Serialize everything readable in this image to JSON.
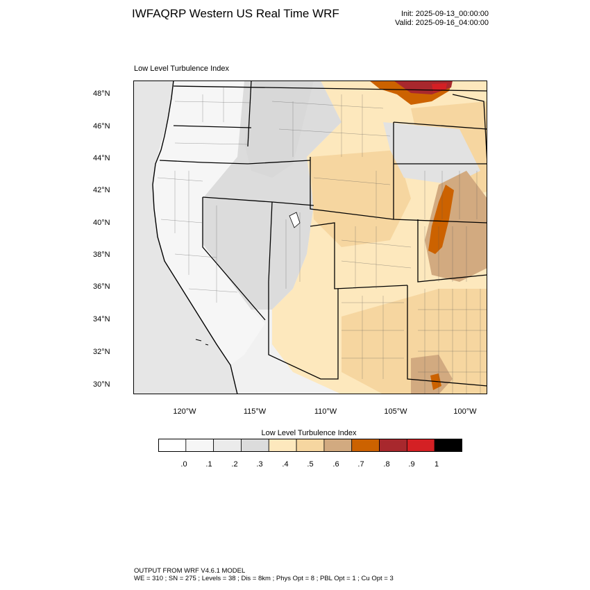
{
  "header": {
    "title": "IWFAQRP Western US Real Time WRF",
    "init": "Init: 2025-09-13_00:00:00",
    "valid": "Valid: 2025-09-16_04:00:00"
  },
  "plot": {
    "title": "Low Level Turbulence Index",
    "lat_labels": [
      "48°N",
      "46°N",
      "44°N",
      "42°N",
      "40°N",
      "38°N",
      "36°N",
      "34°N",
      "32°N",
      "30°N"
    ],
    "lon_labels": [
      "120°W",
      "115°W",
      "110°W",
      "105°W",
      "100°W"
    ]
  },
  "colorbar": {
    "title": "Low Level Turbulence Index",
    "labels": [
      ".0",
      ".1",
      ".2",
      ".3",
      ".4",
      ".5",
      ".6",
      ".7",
      ".8",
      ".9",
      "1"
    ],
    "colors": [
      "#ffffff",
      "#f6f6f6",
      "#ebebeb",
      "#dcdcdc",
      "#fde8bd",
      "#f6d6a0",
      "#d2aa80",
      "#cc6200",
      "#a8282d",
      "#d42024",
      "#000000"
    ]
  },
  "footer": {
    "line1": "OUTPUT FROM WRF V4.6.1 MODEL",
    "line2": "WE = 310 ; SN = 275 ; Levels = 38 ; Dis = 8km ; Phys Opt = 8 ; PBL Opt = 1 ; Cu Opt = 3"
  },
  "colors": {
    "ocean": "#e6e6e6",
    "pacific_nw": "#f3f3f3",
    "great_basin": "#dcdcdc",
    "plains": "#fde8bd",
    "high_plains": "#f6d6a0",
    "brown": "#d2aa80",
    "orange": "#cc6200",
    "dark_red": "#a8282d",
    "red": "#d42024"
  }
}
